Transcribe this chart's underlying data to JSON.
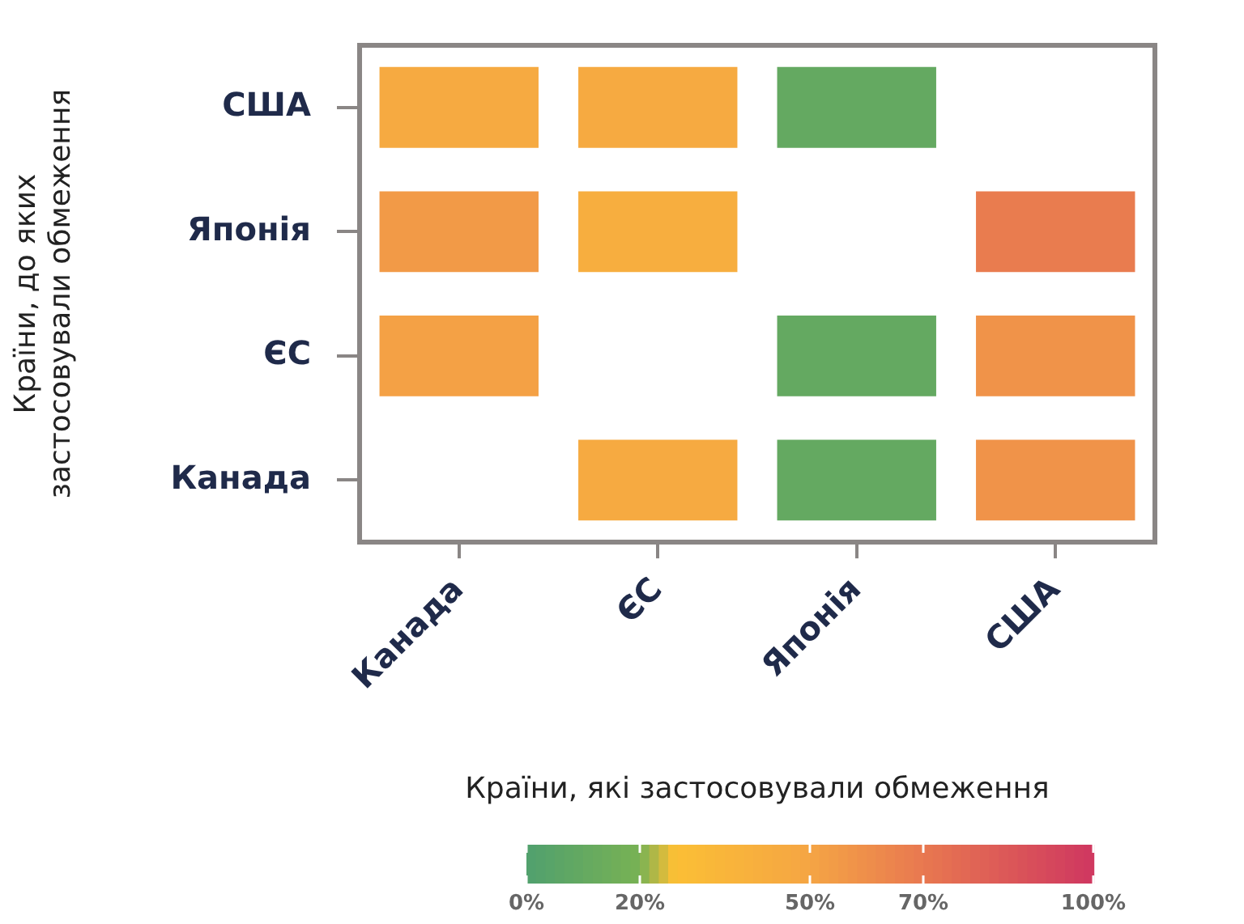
{
  "chart_data": {
    "type": "heatmap",
    "xlabel": "Країни, які застосовували обмеження",
    "ylabel": "Країни, до яких\nзастосовували обмеження",
    "categories": [
      "Канада",
      "ЄС",
      "Японія",
      "США"
    ],
    "y_categories": [
      "США",
      "Японія",
      "ЄС",
      "Канада"
    ],
    "cells": [
      [
        45,
        45,
        10,
        null
      ],
      [
        55,
        42,
        null,
        68
      ],
      [
        52,
        null,
        10,
        58
      ],
      [
        null,
        45,
        10,
        58
      ]
    ],
    "clim": [
      0,
      100
    ],
    "cticks": [
      {
        "value": 0,
        "label": "0%"
      },
      {
        "value": 20,
        "label": "20%"
      },
      {
        "value": 50,
        "label": "50%"
      },
      {
        "value": 70,
        "label": "70%"
      },
      {
        "value": 100,
        "label": "100%"
      }
    ]
  }
}
